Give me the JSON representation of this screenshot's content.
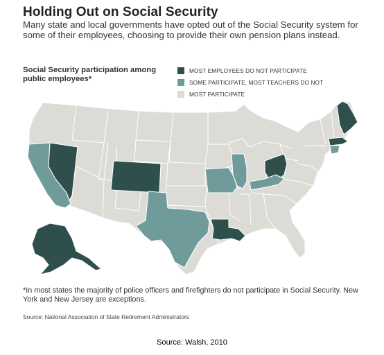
{
  "title": "Holding Out on Social Security",
  "subtitle": "Many state and local governments have opted out of the Social Security system for some of their employees, choosing to provide their own pension plans instead.",
  "legend": {
    "heading": "Social Security participation among public employees*",
    "items": [
      {
        "label": "MOST EMPLOYEES DO NOT PARTICIPATE",
        "color": "#2e4f4c"
      },
      {
        "label": "SOME PARTICIPATE, MOST TEACHERS DO NOT",
        "color": "#6f9c9a"
      },
      {
        "label": "MOST PARTICIPATE",
        "color": "#dddbd6"
      }
    ]
  },
  "map": {
    "colors": {
      "most_do_not": "#2e4f4c",
      "some": "#6f9c9a",
      "most_participate": "#dddbd6"
    },
    "states_most_do_not_participate": [
      "Nevada",
      "Colorado",
      "Louisiana",
      "Ohio",
      "Maine",
      "Massachusetts",
      "Alaska"
    ],
    "states_some_participate": [
      "California",
      "Texas",
      "Missouri",
      "Illinois",
      "Kentucky",
      "Connecticut"
    ]
  },
  "footnote": "*In most states the majority of police officers and firefighters do not participate in Social Security. New York and New Jersey are exceptions.",
  "source_small": "Source: National Association of State Retirement Administrators",
  "caption": "Source:  Walsh, 2010"
}
